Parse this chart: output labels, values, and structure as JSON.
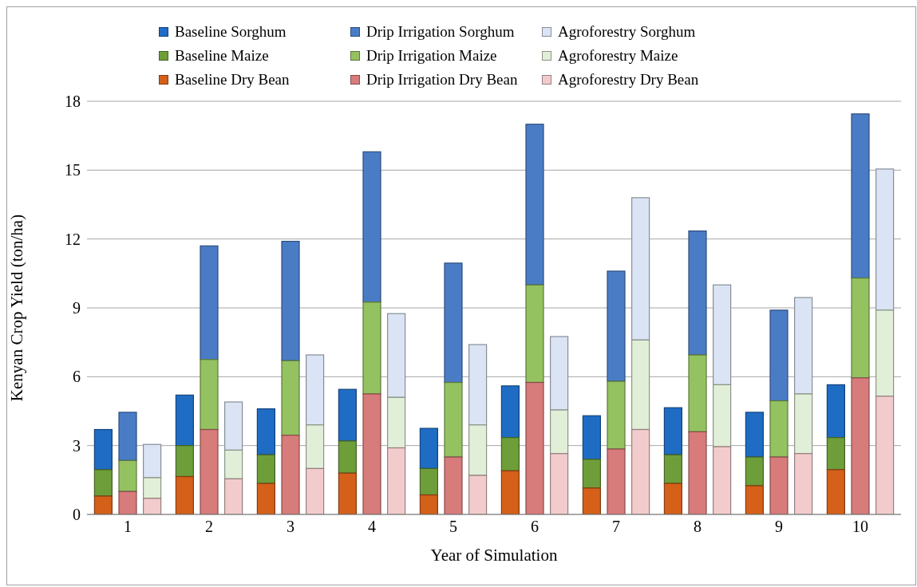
{
  "chart_data": {
    "type": "bar",
    "xlabel": "Year of Simulation",
    "ylabel": "Kenyan Crop Yield (ton/ha)",
    "xlim": [
      0.5,
      10.5
    ],
    "xticks": [
      1,
      2,
      3,
      4,
      5,
      6,
      7,
      8,
      9,
      10
    ],
    "ylim": [
      0,
      18
    ],
    "yticks": [
      0,
      3,
      6,
      9,
      12,
      15,
      18
    ],
    "grid": "y",
    "legend": "top",
    "series": [
      {
        "name": "Baseline Sorghum",
        "color": "#1f6cc4",
        "x": [
          0.7,
          1.7,
          2.7,
          3.7,
          4.7,
          5.7,
          6.7,
          7.7,
          8.7,
          9.7
        ],
        "base": [
          1.95,
          3.0,
          2.6,
          3.2,
          2.0,
          3.35,
          2.4,
          2.6,
          2.5,
          3.35
        ],
        "values": [
          1.75,
          2.2,
          2.0,
          2.25,
          1.75,
          2.25,
          1.9,
          2.05,
          1.95,
          2.3
        ]
      },
      {
        "name": "Drip Irrigation Sorghum",
        "color": "#4a7cc6",
        "x": [
          1,
          2,
          3,
          4,
          5,
          6,
          7,
          8,
          9,
          10
        ],
        "base": [
          2.35,
          6.75,
          6.7,
          9.25,
          5.75,
          10.0,
          5.8,
          6.95,
          4.95,
          10.3
        ],
        "values": [
          2.1,
          4.95,
          5.2,
          6.55,
          5.2,
          7.0,
          4.8,
          5.4,
          3.95,
          7.15
        ]
      },
      {
        "name": "Agroforestry Sorghum",
        "color": "#dbe4f4",
        "x": [
          1.3,
          2.3,
          3.3,
          4.3,
          5.3,
          6.3,
          7.3,
          8.3,
          9.3,
          10.3
        ],
        "base": [
          1.6,
          2.8,
          3.9,
          5.1,
          3.9,
          4.55,
          7.6,
          5.65,
          5.25,
          8.9
        ],
        "values": [
          1.45,
          2.1,
          3.05,
          3.65,
          3.5,
          3.2,
          6.2,
          4.35,
          4.2,
          6.15
        ]
      },
      {
        "name": "Baseline Maize",
        "color": "#6e9e3a",
        "x": [
          0.7,
          1.7,
          2.7,
          3.7,
          4.7,
          5.7,
          6.7,
          7.7,
          8.7,
          9.7
        ],
        "base": [
          0.8,
          1.65,
          1.35,
          1.8,
          0.85,
          1.9,
          1.15,
          1.35,
          1.25,
          1.95
        ],
        "values": [
          1.15,
          1.35,
          1.25,
          1.4,
          1.15,
          1.45,
          1.25,
          1.25,
          1.25,
          1.4
        ]
      },
      {
        "name": "Drip Irrigation Maize",
        "color": "#94c260",
        "x": [
          1,
          2,
          3,
          4,
          5,
          6,
          7,
          8,
          9,
          10
        ],
        "base": [
          1.0,
          3.7,
          3.45,
          5.25,
          2.5,
          5.75,
          2.85,
          3.6,
          2.5,
          5.95
        ],
        "values": [
          1.35,
          3.05,
          3.25,
          4.0,
          3.25,
          4.25,
          2.95,
          3.35,
          2.45,
          4.35
        ]
      },
      {
        "name": "Agroforestry Maize",
        "color": "#e2efd8",
        "x": [
          1.3,
          2.3,
          3.3,
          4.3,
          5.3,
          6.3,
          7.3,
          8.3,
          9.3,
          10.3
        ],
        "base": [
          0.7,
          1.55,
          2.0,
          2.9,
          1.7,
          2.65,
          3.7,
          2.95,
          2.65,
          5.15
        ],
        "values": [
          0.9,
          1.25,
          1.9,
          2.2,
          2.2,
          1.9,
          3.9,
          2.7,
          2.6,
          3.75
        ]
      },
      {
        "name": "Baseline Dry Bean",
        "color": "#d4601a",
        "x": [
          0.7,
          1.7,
          2.7,
          3.7,
          4.7,
          5.7,
          6.7,
          7.7,
          8.7,
          9.7
        ],
        "values": [
          0.8,
          1.65,
          1.35,
          1.8,
          0.85,
          1.9,
          1.15,
          1.35,
          1.25,
          1.95
        ]
      },
      {
        "name": "Drip Irrigation Dry Bean",
        "color": "#d77b7b",
        "x": [
          1,
          2,
          3,
          4,
          5,
          6,
          7,
          8,
          9,
          10
        ],
        "values": [
          1.0,
          3.7,
          3.45,
          5.25,
          2.5,
          5.75,
          2.85,
          3.6,
          2.5,
          5.95
        ]
      },
      {
        "name": "Agroforestry Dry Bean",
        "color": "#f2cccc",
        "x": [
          1.3,
          2.3,
          3.3,
          4.3,
          5.3,
          6.3,
          7.3,
          8.3,
          9.3,
          10.3
        ],
        "values": [
          0.7,
          1.55,
          2.0,
          2.9,
          1.7,
          2.65,
          3.7,
          2.95,
          2.65,
          5.15
        ]
      }
    ]
  }
}
